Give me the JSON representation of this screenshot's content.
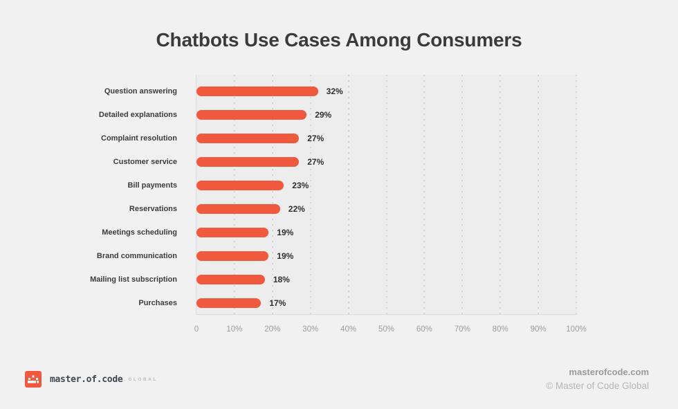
{
  "page": {
    "title": "Chatbots Use Cases Among Consumers"
  },
  "chart_data": {
    "type": "bar",
    "orientation": "horizontal",
    "title": "Chatbots Use Cases Among Consumers",
    "categories": [
      "Question answering",
      "Detailed explanations",
      "Complaint resolution",
      "Customer service",
      "Bill payments",
      "Reservations",
      "Meetings scheduling",
      "Brand communication",
      "Mailing list subscription",
      "Purchases"
    ],
    "values": [
      32,
      29,
      27,
      27,
      23,
      22,
      19,
      19,
      18,
      17
    ],
    "value_labels": [
      "32%",
      "29%",
      "27%",
      "27%",
      "23%",
      "22%",
      "19%",
      "19%",
      "18%",
      "17%"
    ],
    "xlabel": "",
    "ylabel": "",
    "xlim": [
      0,
      100
    ],
    "x_ticks": [
      "0",
      "10%",
      "20%",
      "30%",
      "40%",
      "50%",
      "60%",
      "70%",
      "80%",
      "90%",
      "100%"
    ],
    "grid": "vertical-dotted",
    "legend": "none"
  },
  "footer": {
    "logo": {
      "icon": "pixel-crown-icon",
      "text": "master.of.code",
      "suffix": "GLOBAL"
    },
    "website": "masterofcode.com",
    "copyright": "© Master of Code Global"
  },
  "colors": {
    "page_bg": "#F1F1F2",
    "plot_bg": "#EDEDED",
    "bar": "#F0593E",
    "title_text": "#3B3B3B",
    "label_text": "#3C3C3C",
    "tick_text": "#9C9C9C",
    "grid_line": "#D4D4D4",
    "axis_line": "#DBDBDB"
  }
}
